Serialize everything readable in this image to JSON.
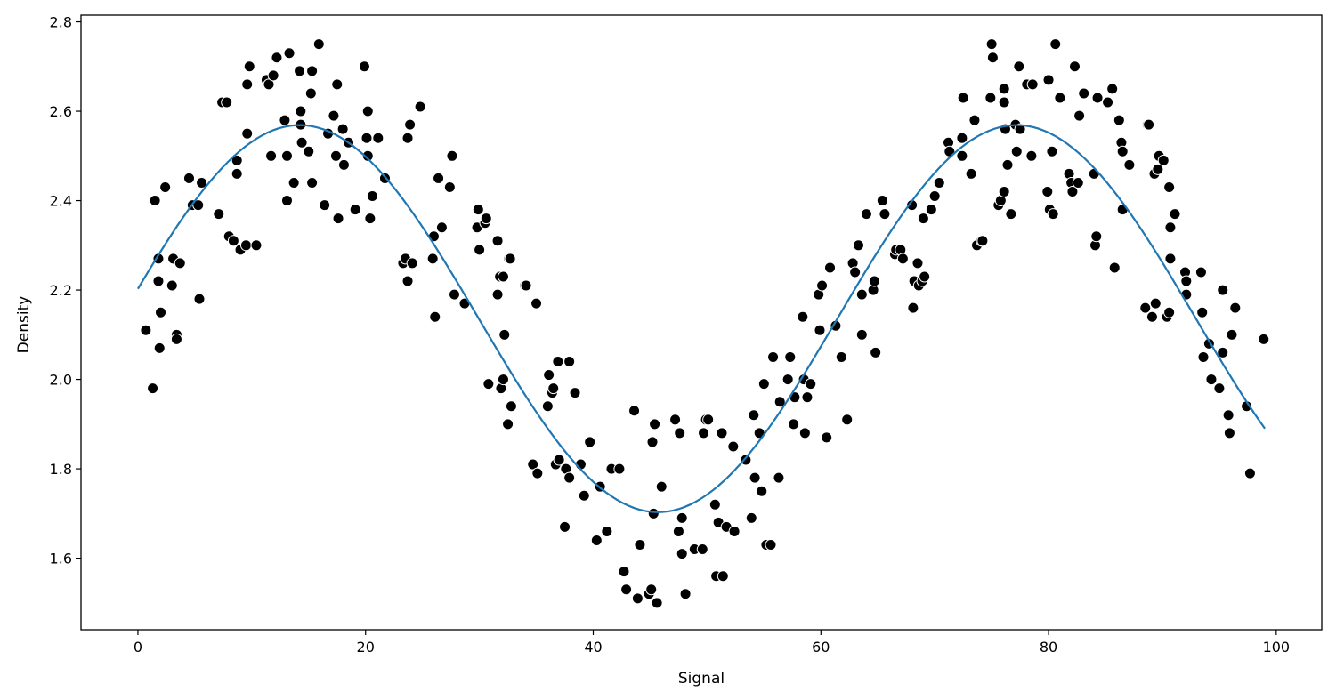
{
  "chart_data": {
    "type": "scatter",
    "title": "",
    "xlabel": "Signal",
    "ylabel": "Density",
    "xlim": [
      -5,
      104
    ],
    "ylim": [
      1.44,
      2.815
    ],
    "xticks": [
      0,
      20,
      40,
      60,
      80,
      100
    ],
    "yticks": [
      1.6,
      1.8,
      2.0,
      2.2,
      2.4,
      2.6,
      2.8
    ],
    "xtick_labels": [
      "0",
      "20",
      "40",
      "60",
      "80",
      "100"
    ],
    "ytick_labels": [
      "1.6",
      "1.8",
      "2.0",
      "2.2",
      "2.4",
      "2.6",
      "2.8"
    ],
    "grid": false,
    "legend": "none",
    "colors": {
      "points": "#000000",
      "point_edge": "#ffffff",
      "fit_line": "#1f77b4"
    },
    "series": [
      {
        "kind": "scatter",
        "points": [
          [
            0.7,
            2.11
          ],
          [
            1.3,
            1.98
          ],
          [
            1.5,
            2.4
          ],
          [
            1.8,
            2.22
          ],
          [
            1.8,
            2.27
          ],
          [
            1.9,
            2.07
          ],
          [
            2.0,
            2.15
          ],
          [
            2.4,
            2.43
          ],
          [
            3.0,
            2.21
          ],
          [
            3.1,
            2.27
          ],
          [
            3.4,
            2.1
          ],
          [
            3.4,
            2.09
          ],
          [
            3.7,
            2.26
          ],
          [
            4.5,
            2.45
          ],
          [
            4.8,
            2.39
          ],
          [
            5.3,
            2.39
          ],
          [
            5.4,
            2.18
          ],
          [
            5.6,
            2.44
          ],
          [
            7.1,
            2.37
          ],
          [
            7.4,
            2.62
          ],
          [
            7.8,
            2.62
          ],
          [
            8.0,
            2.32
          ],
          [
            8.4,
            2.31
          ],
          [
            8.7,
            2.49
          ],
          [
            8.7,
            2.46
          ],
          [
            9.0,
            2.29
          ],
          [
            9.5,
            2.3
          ],
          [
            9.6,
            2.55
          ],
          [
            9.6,
            2.66
          ],
          [
            9.8,
            2.7
          ],
          [
            10.4,
            2.3
          ],
          [
            11.3,
            2.67
          ],
          [
            11.5,
            2.66
          ],
          [
            11.7,
            2.5
          ],
          [
            11.9,
            2.68
          ],
          [
            12.2,
            2.72
          ],
          [
            12.9,
            2.58
          ],
          [
            13.1,
            2.4
          ],
          [
            13.1,
            2.5
          ],
          [
            13.3,
            2.73
          ],
          [
            13.7,
            2.44
          ],
          [
            14.2,
            2.69
          ],
          [
            14.3,
            2.6
          ],
          [
            14.3,
            2.57
          ],
          [
            14.4,
            2.53
          ],
          [
            15.0,
            2.51
          ],
          [
            15.2,
            2.64
          ],
          [
            15.3,
            2.69
          ],
          [
            15.3,
            2.44
          ],
          [
            15.9,
            2.75
          ],
          [
            16.4,
            2.39
          ],
          [
            16.7,
            2.55
          ],
          [
            17.2,
            2.59
          ],
          [
            17.4,
            2.5
          ],
          [
            17.5,
            2.66
          ],
          [
            17.6,
            2.36
          ],
          [
            18.0,
            2.56
          ],
          [
            18.1,
            2.48
          ],
          [
            18.5,
            2.53
          ],
          [
            19.1,
            2.38
          ],
          [
            19.9,
            2.7
          ],
          [
            20.1,
            2.54
          ],
          [
            20.2,
            2.5
          ],
          [
            20.2,
            2.6
          ],
          [
            20.4,
            2.36
          ],
          [
            20.6,
            2.41
          ],
          [
            21.1,
            2.54
          ],
          [
            21.7,
            2.45
          ],
          [
            23.3,
            2.26
          ],
          [
            23.5,
            2.27
          ],
          [
            23.7,
            2.22
          ],
          [
            23.7,
            2.54
          ],
          [
            23.9,
            2.57
          ],
          [
            24.1,
            2.26
          ],
          [
            24.8,
            2.61
          ],
          [
            25.9,
            2.27
          ],
          [
            26.0,
            2.32
          ],
          [
            26.1,
            2.14
          ],
          [
            26.4,
            2.45
          ],
          [
            26.7,
            2.34
          ],
          [
            27.4,
            2.43
          ],
          [
            27.6,
            2.5
          ],
          [
            27.8,
            2.19
          ],
          [
            28.7,
            2.17
          ],
          [
            29.8,
            2.34
          ],
          [
            29.9,
            2.38
          ],
          [
            30.0,
            2.29
          ],
          [
            30.5,
            2.35
          ],
          [
            30.6,
            2.36
          ],
          [
            30.8,
            1.99
          ],
          [
            31.6,
            2.19
          ],
          [
            31.6,
            2.31
          ],
          [
            31.8,
            2.23
          ],
          [
            31.9,
            1.98
          ],
          [
            32.1,
            2.0
          ],
          [
            32.1,
            2.23
          ],
          [
            32.2,
            2.1
          ],
          [
            32.5,
            1.9
          ],
          [
            32.6,
            2.27
          ],
          [
            32.7,
            2.27
          ],
          [
            32.8,
            1.94
          ],
          [
            34.0,
            2.21
          ],
          [
            34.1,
            2.21
          ],
          [
            34.7,
            1.81
          ],
          [
            35.0,
            2.17
          ],
          [
            35.1,
            1.79
          ],
          [
            36.0,
            1.94
          ],
          [
            36.1,
            2.01
          ],
          [
            36.4,
            1.97
          ],
          [
            36.5,
            1.98
          ],
          [
            36.7,
            1.81
          ],
          [
            36.9,
            2.04
          ],
          [
            37.0,
            1.82
          ],
          [
            37.5,
            1.67
          ],
          [
            37.6,
            1.8
          ],
          [
            37.9,
            1.78
          ],
          [
            37.9,
            2.04
          ],
          [
            38.4,
            1.97
          ],
          [
            38.9,
            1.81
          ],
          [
            39.2,
            1.74
          ],
          [
            39.7,
            1.86
          ],
          [
            40.3,
            1.64
          ],
          [
            40.6,
            1.76
          ],
          [
            41.2,
            1.66
          ],
          [
            41.6,
            1.8
          ],
          [
            42.3,
            1.8
          ],
          [
            42.7,
            1.57
          ],
          [
            42.9,
            1.53
          ],
          [
            43.6,
            1.93
          ],
          [
            43.9,
            1.51
          ],
          [
            44.1,
            1.63
          ],
          [
            44.9,
            1.52
          ],
          [
            45.1,
            1.53
          ],
          [
            45.2,
            1.86
          ],
          [
            45.3,
            1.7
          ],
          [
            45.4,
            1.9
          ],
          [
            45.6,
            1.5
          ],
          [
            46.0,
            1.76
          ],
          [
            47.2,
            1.91
          ],
          [
            47.5,
            1.66
          ],
          [
            47.6,
            1.88
          ],
          [
            47.8,
            1.69
          ],
          [
            47.8,
            1.61
          ],
          [
            48.1,
            1.52
          ],
          [
            48.9,
            1.62
          ],
          [
            49.6,
            1.62
          ],
          [
            49.7,
            1.88
          ],
          [
            49.9,
            1.91
          ],
          [
            50.1,
            1.91
          ],
          [
            50.7,
            1.72
          ],
          [
            50.8,
            1.56
          ],
          [
            51.0,
            1.68
          ],
          [
            51.3,
            1.88
          ],
          [
            51.4,
            1.56
          ],
          [
            51.7,
            1.67
          ],
          [
            52.3,
            1.85
          ],
          [
            52.4,
            1.66
          ],
          [
            53.4,
            1.82
          ],
          [
            53.9,
            1.69
          ],
          [
            54.1,
            1.92
          ],
          [
            54.2,
            1.78
          ],
          [
            54.6,
            1.88
          ],
          [
            54.8,
            1.75
          ],
          [
            55.0,
            1.99
          ],
          [
            55.2,
            1.63
          ],
          [
            55.6,
            1.63
          ],
          [
            55.8,
            2.05
          ],
          [
            56.3,
            1.78
          ],
          [
            56.4,
            1.95
          ],
          [
            57.1,
            2.0
          ],
          [
            57.3,
            2.05
          ],
          [
            57.6,
            1.9
          ],
          [
            57.7,
            1.96
          ],
          [
            58.4,
            2.14
          ],
          [
            58.5,
            2.0
          ],
          [
            58.6,
            1.88
          ],
          [
            58.8,
            1.96
          ],
          [
            59.1,
            1.99
          ],
          [
            59.8,
            2.19
          ],
          [
            59.9,
            2.11
          ],
          [
            60.1,
            2.21
          ],
          [
            60.5,
            1.87
          ],
          [
            60.8,
            2.25
          ],
          [
            61.3,
            2.12
          ],
          [
            61.8,
            2.05
          ],
          [
            62.3,
            1.91
          ],
          [
            62.8,
            2.26
          ],
          [
            63.0,
            2.24
          ],
          [
            63.3,
            2.3
          ],
          [
            63.6,
            2.19
          ],
          [
            63.6,
            2.1
          ],
          [
            64.0,
            2.37
          ],
          [
            64.6,
            2.2
          ],
          [
            64.7,
            2.22
          ],
          [
            64.8,
            2.06
          ],
          [
            65.4,
            2.4
          ],
          [
            65.6,
            2.37
          ],
          [
            66.5,
            2.28
          ],
          [
            66.6,
            2.29
          ],
          [
            67.0,
            2.29
          ],
          [
            67.2,
            2.27
          ],
          [
            68.0,
            2.39
          ],
          [
            68.1,
            2.16
          ],
          [
            68.2,
            2.22
          ],
          [
            68.5,
            2.26
          ],
          [
            68.6,
            2.21
          ],
          [
            68.9,
            2.22
          ],
          [
            69.1,
            2.23
          ],
          [
            69.0,
            2.36
          ],
          [
            69.7,
            2.38
          ],
          [
            70.0,
            2.41
          ],
          [
            70.4,
            2.44
          ],
          [
            71.2,
            2.53
          ],
          [
            71.3,
            2.51
          ],
          [
            72.4,
            2.5
          ],
          [
            72.4,
            2.54
          ],
          [
            72.5,
            2.63
          ],
          [
            73.2,
            2.46
          ],
          [
            73.5,
            2.58
          ],
          [
            73.7,
            2.3
          ],
          [
            74.1,
            2.31
          ],
          [
            74.2,
            2.31
          ],
          [
            74.9,
            2.63
          ],
          [
            75.0,
            2.75
          ],
          [
            75.1,
            2.72
          ],
          [
            75.6,
            2.39
          ],
          [
            75.8,
            2.4
          ],
          [
            76.1,
            2.42
          ],
          [
            76.1,
            2.65
          ],
          [
            76.1,
            2.62
          ],
          [
            76.2,
            2.56
          ],
          [
            76.4,
            2.48
          ],
          [
            76.7,
            2.37
          ],
          [
            77.1,
            2.57
          ],
          [
            77.2,
            2.51
          ],
          [
            77.4,
            2.7
          ],
          [
            77.5,
            2.56
          ],
          [
            78.1,
            2.66
          ],
          [
            78.5,
            2.5
          ],
          [
            78.6,
            2.66
          ],
          [
            79.9,
            2.42
          ],
          [
            80.0,
            2.67
          ],
          [
            80.1,
            2.38
          ],
          [
            80.3,
            2.51
          ],
          [
            80.4,
            2.37
          ],
          [
            80.6,
            2.75
          ],
          [
            81.0,
            2.63
          ],
          [
            81.8,
            2.46
          ],
          [
            82.0,
            2.44
          ],
          [
            82.1,
            2.42
          ],
          [
            82.3,
            2.7
          ],
          [
            82.6,
            2.44
          ],
          [
            82.7,
            2.59
          ],
          [
            83.1,
            2.64
          ],
          [
            84.0,
            2.46
          ],
          [
            84.1,
            2.3
          ],
          [
            84.2,
            2.32
          ],
          [
            84.3,
            2.63
          ],
          [
            85.2,
            2.62
          ],
          [
            85.6,
            2.65
          ],
          [
            85.8,
            2.25
          ],
          [
            86.2,
            2.58
          ],
          [
            86.4,
            2.53
          ],
          [
            86.5,
            2.38
          ],
          [
            86.5,
            2.51
          ],
          [
            87.1,
            2.48
          ],
          [
            88.5,
            2.16
          ],
          [
            88.7,
            2.57
          ],
          [
            88.8,
            2.57
          ],
          [
            89.1,
            2.14
          ],
          [
            89.3,
            2.46
          ],
          [
            89.4,
            2.17
          ],
          [
            89.6,
            2.47
          ],
          [
            89.7,
            2.5
          ],
          [
            90.1,
            2.49
          ],
          [
            90.4,
            2.14
          ],
          [
            90.6,
            2.15
          ],
          [
            90.6,
            2.43
          ],
          [
            90.7,
            2.27
          ],
          [
            90.7,
            2.34
          ],
          [
            91.1,
            2.37
          ],
          [
            92.0,
            2.24
          ],
          [
            92.1,
            2.22
          ],
          [
            92.1,
            2.19
          ],
          [
            93.4,
            2.24
          ],
          [
            93.5,
            2.15
          ],
          [
            93.6,
            2.05
          ],
          [
            94.1,
            2.08
          ],
          [
            94.3,
            2.0
          ],
          [
            95.0,
            1.98
          ],
          [
            95.3,
            2.06
          ],
          [
            95.3,
            2.2
          ],
          [
            95.8,
            1.92
          ],
          [
            95.9,
            1.88
          ],
          [
            96.1,
            2.1
          ],
          [
            96.4,
            2.16
          ],
          [
            97.4,
            1.94
          ],
          [
            97.7,
            1.79
          ],
          [
            98.9,
            2.09
          ]
        ]
      },
      {
        "kind": "line",
        "model": {
          "offset": 2.136,
          "amplitude": 0.433,
          "period": 63.0,
          "phase_rad": 0.155,
          "x_start": 0,
          "x_end": 99
        }
      }
    ]
  }
}
